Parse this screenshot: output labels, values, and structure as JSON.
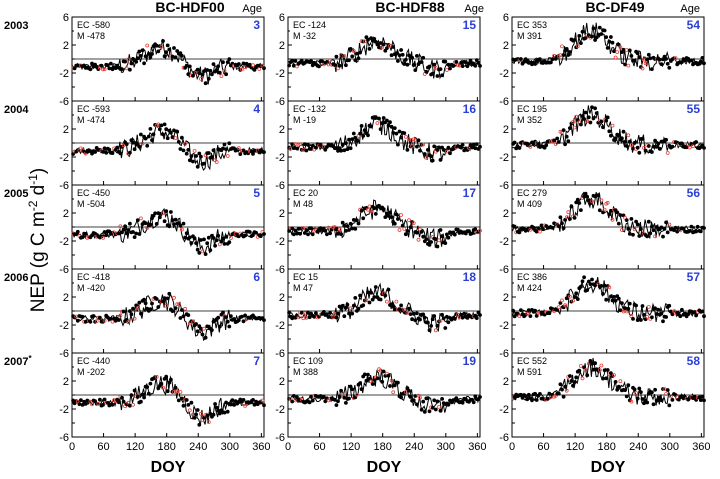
{
  "chart_data": {
    "type": "line",
    "ylabel": "NEP (g C m-2 d-1)",
    "ylabel_parts": {
      "main": "NEP (g C m",
      "exp1": "-2",
      "mid": " d",
      "exp2": "-1",
      "end": ")"
    },
    "xlabel": "DOY",
    "x_ticks": [
      "0",
      "60",
      "120",
      "180",
      "240",
      "300",
      "360"
    ],
    "y_ticks": [
      "6",
      "2",
      "-2",
      "-6"
    ],
    "y_ticks_inner": [
      "4",
      "0",
      "-4"
    ],
    "xlim": [
      0,
      365
    ],
    "ylim": [
      -6,
      6
    ],
    "age_header": "Age",
    "series_legend": {
      "EC": "EC",
      "M": "M"
    },
    "colors": {
      "model_line": "#000000",
      "ec_points": "#000000",
      "ec_points_gapfilled": "#e8413a",
      "age_numbers": "#2a3fd6"
    },
    "years": [
      "2003",
      "2004",
      "2005",
      "2006",
      "2007*"
    ],
    "years_display": [
      {
        "text": "2003",
        "sup": ""
      },
      {
        "text": "2004",
        "sup": ""
      },
      {
        "text": "2005",
        "sup": ""
      },
      {
        "text": "2006",
        "sup": ""
      },
      {
        "text": "2007",
        "sup": "*"
      }
    ],
    "sites": [
      {
        "name": "BC-HDF00",
        "panels": [
          {
            "year": "2003",
            "age": "3",
            "ec_label": "EC",
            "ec_value": "-580",
            "m_label": "M",
            "m_value": "-478"
          },
          {
            "year": "2004",
            "age": "4",
            "ec_label": "EC",
            "ec_value": "-593",
            "m_label": "M",
            "m_value": "-474"
          },
          {
            "year": "2005",
            "age": "5",
            "ec_label": "EC",
            "ec_value": "-450",
            "m_label": "M",
            "m_value": "-504"
          },
          {
            "year": "2006",
            "age": "6",
            "ec_label": "EC",
            "ec_value": "-418",
            "m_label": "M",
            "m_value": "-420"
          },
          {
            "year": "2007*",
            "age": "7",
            "ec_label": "EC",
            "ec_value": "-440",
            "m_label": "M",
            "m_value": "-202"
          }
        ]
      },
      {
        "name": "BC-HDF88",
        "panels": [
          {
            "year": "2003",
            "age": "15",
            "ec_label": "EC",
            "ec_value": "-124",
            "m_label": "M",
            "m_value": "-32"
          },
          {
            "year": "2004",
            "age": "16",
            "ec_label": "EC",
            "ec_value": "-132",
            "m_label": "M",
            "m_value": "-19"
          },
          {
            "year": "2005",
            "age": "17",
            "ec_label": "EC",
            "ec_value": "20",
            "m_label": "M",
            "m_value": "48"
          },
          {
            "year": "2006",
            "age": "18",
            "ec_label": "EC",
            "ec_value": "15",
            "m_label": "M",
            "m_value": "47"
          },
          {
            "year": "2007*",
            "age": "19",
            "ec_label": "EC",
            "ec_value": "109",
            "m_label": "M",
            "m_value": "388"
          }
        ]
      },
      {
        "name": "BC-DF49",
        "panels": [
          {
            "year": "2003",
            "age": "54",
            "ec_label": "EC",
            "ec_value": "353",
            "m_label": "M",
            "m_value": "391"
          },
          {
            "year": "2004",
            "age": "55",
            "ec_label": "EC",
            "ec_value": "195",
            "m_label": "M",
            "m_value": "352"
          },
          {
            "year": "2005",
            "age": "56",
            "ec_label": "EC",
            "ec_value": "279",
            "m_label": "M",
            "m_value": "409"
          },
          {
            "year": "2006",
            "age": "57",
            "ec_label": "EC",
            "ec_value": "386",
            "m_label": "M",
            "m_value": "424"
          },
          {
            "year": "2007*",
            "age": "58",
            "ec_label": "EC",
            "ec_value": "552",
            "m_label": "M",
            "m_value": "591"
          }
        ]
      }
    ],
    "seasonal_shape": {
      "BC-HDF00": {
        "winter": -1.1,
        "peak": 1.6,
        "peak_doy": 170,
        "late_dip": -3.2,
        "dip_doy": 245
      },
      "BC-HDF88": {
        "winter": -0.6,
        "peak": 2.6,
        "peak_doy": 170,
        "late_dip": -1.8,
        "dip_doy": 280
      },
      "BC-DF49": {
        "winter": -0.3,
        "peak": 4.0,
        "peak_doy": 150,
        "late_dip": 0.0,
        "dip_doy": 200
      }
    }
  }
}
